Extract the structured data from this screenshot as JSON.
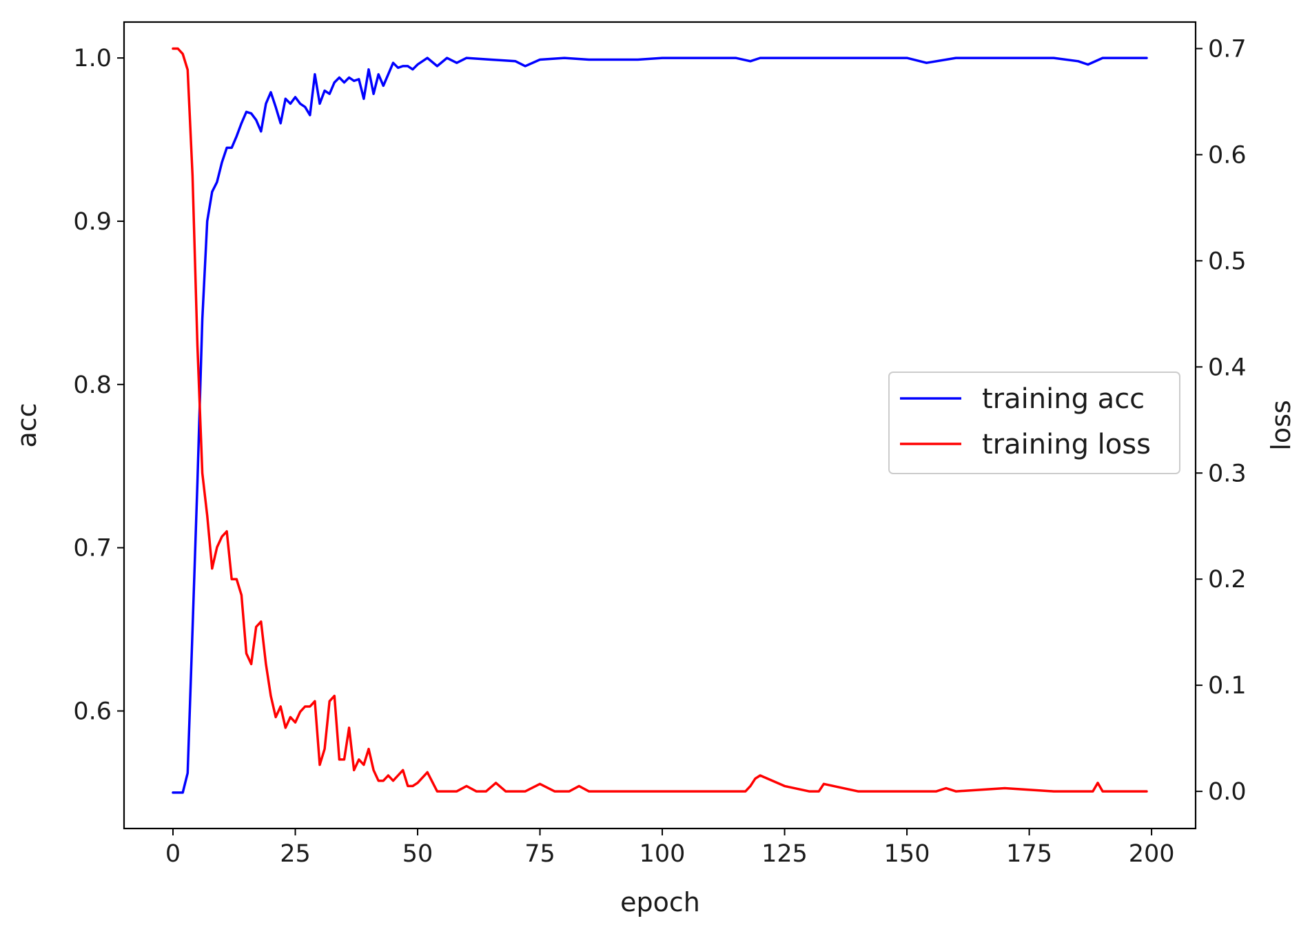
{
  "chart_data": {
    "type": "line",
    "title": "",
    "xlabel": "epoch",
    "ylabel_left": "acc",
    "ylabel_right": "loss",
    "xlim": [
      -10,
      209
    ],
    "ylim_left": [
      0.528,
      1.022
    ],
    "ylim_right": [
      -0.035,
      0.725
    ],
    "x_ticks": [
      0,
      25,
      50,
      75,
      100,
      125,
      150,
      175,
      200
    ],
    "x_tick_labels": [
      "0",
      "25",
      "50",
      "75",
      "100",
      "125",
      "150",
      "175",
      "200"
    ],
    "y_left_ticks": [
      0.6,
      0.7,
      0.8,
      0.9,
      1.0
    ],
    "y_left_tick_labels": [
      "0.6",
      "0.7",
      "0.8",
      "0.9",
      "1.0"
    ],
    "y_right_ticks": [
      0.0,
      0.1,
      0.2,
      0.3,
      0.4,
      0.5,
      0.6,
      0.7
    ],
    "y_right_tick_labels": [
      "0.0",
      "0.1",
      "0.2",
      "0.3",
      "0.4",
      "0.5",
      "0.6",
      "0.7"
    ],
    "grid": false,
    "legend": {
      "position": "center-right",
      "entries": [
        "training acc",
        "training loss"
      ]
    },
    "series": [
      {
        "name": "training acc",
        "axis": "left",
        "color": "#0000ff",
        "x": [
          0,
          1,
          2,
          3,
          4,
          5,
          6,
          7,
          8,
          9,
          10,
          11,
          12,
          13,
          14,
          15,
          16,
          17,
          18,
          19,
          20,
          21,
          22,
          23,
          24,
          25,
          26,
          27,
          28,
          29,
          30,
          31,
          32,
          33,
          34,
          35,
          36,
          37,
          38,
          39,
          40,
          41,
          42,
          43,
          44,
          45,
          46,
          47,
          48,
          49,
          50,
          52,
          54,
          56,
          58,
          60,
          65,
          70,
          72,
          75,
          80,
          85,
          90,
          95,
          100,
          105,
          110,
          115,
          118,
          120,
          125,
          130,
          135,
          140,
          150,
          154,
          160,
          170,
          180,
          185,
          187,
          190,
          195,
          199
        ],
        "values": [
          0.55,
          0.55,
          0.55,
          0.562,
          0.65,
          0.74,
          0.84,
          0.9,
          0.918,
          0.924,
          0.936,
          0.945,
          0.945,
          0.952,
          0.96,
          0.967,
          0.966,
          0.962,
          0.955,
          0.972,
          0.979,
          0.97,
          0.96,
          0.975,
          0.972,
          0.976,
          0.972,
          0.97,
          0.965,
          0.99,
          0.972,
          0.98,
          0.978,
          0.985,
          0.988,
          0.985,
          0.988,
          0.986,
          0.987,
          0.975,
          0.993,
          0.978,
          0.99,
          0.983,
          0.99,
          0.997,
          0.994,
          0.995,
          0.995,
          0.993,
          0.996,
          1.0,
          0.995,
          1.0,
          0.997,
          1.0,
          0.999,
          0.998,
          0.995,
          0.999,
          1.0,
          0.999,
          0.999,
          0.999,
          1.0,
          1.0,
          1.0,
          1.0,
          0.998,
          1.0,
          1.0,
          1.0,
          1.0,
          1.0,
          1.0,
          0.997,
          1.0,
          1.0,
          1.0,
          0.998,
          0.996,
          1.0,
          1.0,
          1.0
        ]
      },
      {
        "name": "training loss",
        "axis": "right",
        "color": "#ff0000",
        "x": [
          0,
          1,
          2,
          3,
          4,
          5,
          6,
          7,
          8,
          9,
          10,
          11,
          12,
          13,
          14,
          15,
          16,
          17,
          18,
          19,
          20,
          21,
          22,
          23,
          24,
          25,
          26,
          27,
          28,
          29,
          30,
          31,
          32,
          33,
          34,
          35,
          36,
          37,
          38,
          39,
          40,
          41,
          42,
          43,
          44,
          45,
          46,
          47,
          48,
          49,
          50,
          52,
          54,
          56,
          58,
          60,
          62,
          64,
          66,
          68,
          70,
          72,
          75,
          78,
          80,
          81,
          83,
          85,
          90,
          100,
          110,
          115,
          117,
          118,
          119,
          120,
          125,
          130,
          131,
          132,
          133,
          140,
          150,
          154,
          156,
          158,
          160,
          170,
          180,
          185,
          187,
          188,
          189,
          190,
          195,
          199
        ],
        "values": [
          0.7,
          0.7,
          0.695,
          0.68,
          0.58,
          0.42,
          0.3,
          0.26,
          0.21,
          0.23,
          0.24,
          0.245,
          0.2,
          0.2,
          0.185,
          0.13,
          0.12,
          0.155,
          0.16,
          0.12,
          0.09,
          0.07,
          0.08,
          0.06,
          0.07,
          0.065,
          0.075,
          0.08,
          0.08,
          0.085,
          0.025,
          0.04,
          0.085,
          0.09,
          0.03,
          0.03,
          0.06,
          0.02,
          0.03,
          0.025,
          0.04,
          0.02,
          0.01,
          0.01,
          0.015,
          0.01,
          0.015,
          0.02,
          0.005,
          0.005,
          0.008,
          0.018,
          0.0,
          0.0,
          0.0,
          0.005,
          0.0,
          0.0,
          0.008,
          0.0,
          0.0,
          0.0,
          0.007,
          0.0,
          0.0,
          0.0,
          0.005,
          0.0,
          0.0,
          0.0,
          0.0,
          0.0,
          0.0,
          0.005,
          0.012,
          0.015,
          0.005,
          0.0,
          0.0,
          0.0,
          0.007,
          0.0,
          0.0,
          0.0,
          0.0,
          0.003,
          0.0,
          0.003,
          0.0,
          0.0,
          0.0,
          0.0,
          0.008,
          0.0,
          0.0,
          0.0
        ]
      }
    ]
  }
}
